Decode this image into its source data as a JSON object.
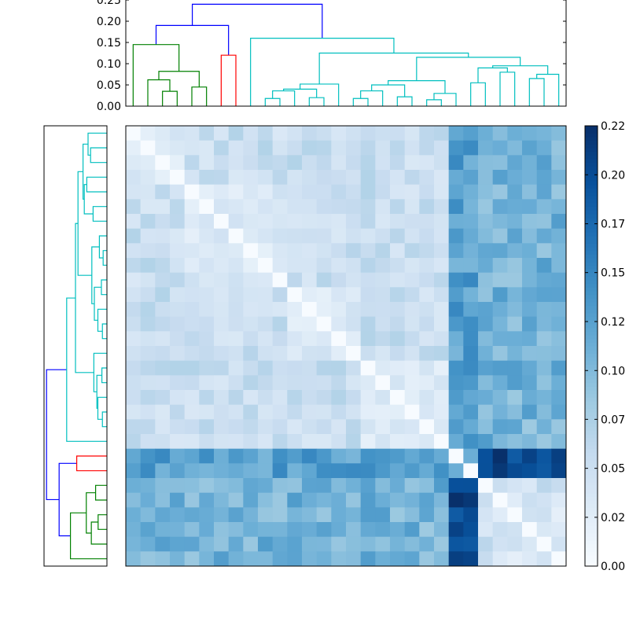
{
  "chart_data": {
    "type": "heatmap",
    "title": "",
    "xlabel": "",
    "ylabel": "",
    "n": 30,
    "colormap": "Blues",
    "colors": {
      "cmap_low": "#f7fbff",
      "cmap_mid": "#6baed6",
      "cmap_high": "#08306b",
      "green_cluster": "#008000",
      "red_cluster": "#ff0000",
      "cyan_cluster": "#00bfbf",
      "link_color": "#0000ff"
    },
    "clusters": [
      {
        "name": "green",
        "size": 6,
        "color": "#008000"
      },
      {
        "name": "red",
        "size": 2,
        "color": "#ff0000"
      },
      {
        "name": "cyan",
        "size": 22,
        "color": "#00bfbf"
      }
    ],
    "dendrogram_top": {
      "axis_ylim": [
        0,
        0.25
      ],
      "ticks": [
        "0.00",
        "0.05",
        "0.10",
        "0.15",
        "0.20",
        "0.25"
      ],
      "merge_heights": {
        "green_root": 0.145,
        "red_root": 0.12,
        "cyan_root": 0.16,
        "green_red": 0.19,
        "all": 0.24
      }
    },
    "colorbar": {
      "range": [
        0,
        0.24
      ],
      "ticks": [
        "0.00",
        "0.02",
        "0.05",
        "0.07",
        "0.10",
        "0.12",
        "0.15",
        "0.17",
        "0.20",
        "0.22"
      ]
    },
    "matrix_stats": {
      "diagonal": 0.0,
      "within_cyan_range": [
        0.01,
        0.06
      ],
      "green_vs_cyan": 0.12,
      "red_vs_cyan": 0.14,
      "green_vs_red": 0.19,
      "max_value": 0.24
    }
  }
}
